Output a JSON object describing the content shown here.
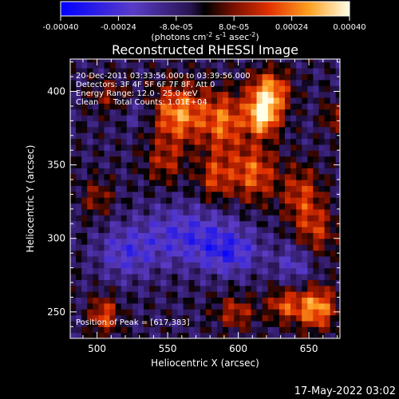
{
  "chart_data": {
    "type": "heatmap",
    "title": "Reconstructed RHESSI Image",
    "xlabel": "Heliocentric X (arcsec)",
    "ylabel": "Heliocentric Y (arcsec)",
    "xlim": [
      481,
      672
    ],
    "ylim": [
      232,
      422
    ],
    "x_ticks": [
      500,
      550,
      600,
      650
    ],
    "y_ticks": [
      250,
      300,
      350,
      400
    ],
    "colorbar": {
      "range": [
        -0.0004,
        0.0004
      ],
      "tick_labels": [
        "-0.00040",
        "-0.00024",
        "-8.0e-05",
        "8.0e-05",
        "0.00024",
        "0.00040"
      ],
      "tick_values": [
        -0.0004,
        -0.00024,
        -8e-05,
        8e-05,
        0.00024,
        0.0004
      ],
      "unit_label_parts": [
        "(photons cm",
        "-2",
        " s",
        "-1",
        " asec",
        "-2",
        ")"
      ]
    },
    "annotations": {
      "time_range": "20-Dec-2011 03:33:56.000 to 03:39:56.000",
      "detectors": "Detectors: 3F 4F 5F 6F 7F 8F, Att 0",
      "energy": "Energy Range: 12.0 - 25.0 keV",
      "method": "Clean",
      "counts": "Total Counts: 1.01E+04",
      "peak": "Position of Peak = [617,383]"
    },
    "peak": [
      617,
      383
    ],
    "hot_regions": [
      {
        "x": 558,
        "y": 385,
        "amp": 0.00032,
        "sx": 14,
        "sy": 14
      },
      {
        "x": 590,
        "y": 380,
        "amp": 0.00026,
        "sx": 10,
        "sy": 14
      },
      {
        "x": 617,
        "y": 383,
        "amp": 0.0004,
        "sx": 8,
        "sy": 9
      },
      {
        "x": 622,
        "y": 400,
        "amp": 0.00034,
        "sx": 10,
        "sy": 10
      },
      {
        "x": 610,
        "y": 345,
        "amp": 0.00026,
        "sx": 12,
        "sy": 14
      },
      {
        "x": 645,
        "y": 330,
        "amp": 0.0002,
        "sx": 10,
        "sy": 14
      },
      {
        "x": 655,
        "y": 305,
        "amp": 0.00018,
        "sx": 10,
        "sy": 12
      },
      {
        "x": 583,
        "y": 342,
        "amp": 0.0002,
        "sx": 8,
        "sy": 12
      },
      {
        "x": 548,
        "y": 352,
        "amp": 0.00016,
        "sx": 10,
        "sy": 10
      },
      {
        "x": 500,
        "y": 328,
        "amp": 0.00014,
        "sx": 8,
        "sy": 9
      },
      {
        "x": 508,
        "y": 398,
        "amp": 0.00012,
        "sx": 10,
        "sy": 8
      },
      {
        "x": 655,
        "y": 253,
        "amp": 0.00034,
        "sx": 10,
        "sy": 10
      },
      {
        "x": 632,
        "y": 255,
        "amp": 0.00022,
        "sx": 8,
        "sy": 8
      },
      {
        "x": 505,
        "y": 248,
        "amp": 0.00024,
        "sx": 7,
        "sy": 9
      },
      {
        "x": 598,
        "y": 250,
        "amp": 0.00018,
        "sx": 10,
        "sy": 8
      },
      {
        "x": 668,
        "y": 383,
        "amp": 0.00014,
        "sx": 6,
        "sy": 8
      }
    ],
    "cold_regions": [
      {
        "x": 565,
        "y": 302,
        "amp": -0.0002,
        "sx": 25,
        "sy": 14
      },
      {
        "x": 520,
        "y": 290,
        "amp": -0.00016,
        "sx": 14,
        "sy": 12
      },
      {
        "x": 595,
        "y": 290,
        "amp": -0.00018,
        "sx": 14,
        "sy": 10
      },
      {
        "x": 640,
        "y": 283,
        "amp": -0.00014,
        "sx": 10,
        "sy": 10
      },
      {
        "x": 530,
        "y": 385,
        "amp": -0.0001,
        "sx": 8,
        "sy": 8
      }
    ]
  },
  "footer": {
    "timestamp": "17-May-2022 03:02"
  }
}
